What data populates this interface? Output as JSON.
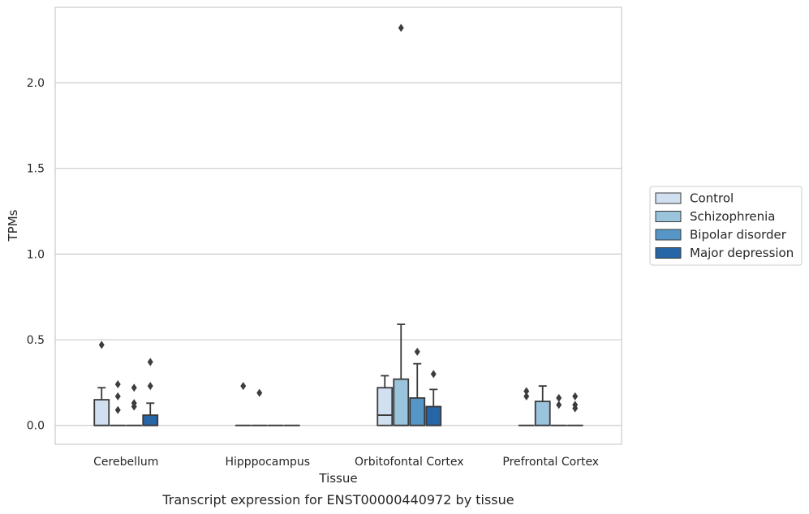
{
  "caption": "Transcript expression for ENST00000440972 by tissue",
  "chart_data": {
    "type": "box",
    "xlabel": "Tissue",
    "ylabel": "TPMs",
    "ylim": [
      -0.11,
      2.44
    ],
    "yticks": [
      0.0,
      0.5,
      1.0,
      1.5,
      2.0
    ],
    "ytick_labels": [
      "0.0",
      "0.5",
      "1.0",
      "1.5",
      "2.0"
    ],
    "grid": "horizontal",
    "legend_position": "right",
    "categories": [
      "Cerebellum",
      "Hipppocampus",
      "Orbitofontal Cortex",
      "Prefrontal Cortex"
    ],
    "series": [
      {
        "name": "Control",
        "color": "#d0e0f0",
        "boxes": [
          {
            "q1": 0.0,
            "median": 0.0,
            "q3": 0.15,
            "whisker_low": 0.0,
            "whisker_high": 0.22,
            "outliers": [
              0.47
            ]
          },
          {
            "q1": 0.0,
            "median": 0.0,
            "q3": 0.0,
            "whisker_low": 0.0,
            "whisker_high": 0.0,
            "outliers": [
              0.23
            ]
          },
          {
            "q1": 0.0,
            "median": 0.06,
            "q3": 0.22,
            "whisker_low": 0.0,
            "whisker_high": 0.29,
            "outliers": []
          },
          {
            "q1": 0.0,
            "median": 0.0,
            "q3": 0.0,
            "whisker_low": 0.0,
            "whisker_high": 0.0,
            "outliers": [
              0.17,
              0.2
            ]
          }
        ]
      },
      {
        "name": "Schizophrenia",
        "color": "#9ac3dc",
        "boxes": [
          {
            "q1": 0.0,
            "median": 0.0,
            "q3": 0.0,
            "whisker_low": 0.0,
            "whisker_high": 0.0,
            "outliers": [
              0.09,
              0.17,
              0.24
            ]
          },
          {
            "q1": 0.0,
            "median": 0.0,
            "q3": 0.0,
            "whisker_low": 0.0,
            "whisker_high": 0.0,
            "outliers": [
              0.19
            ]
          },
          {
            "q1": 0.0,
            "median": 0.0,
            "q3": 0.27,
            "whisker_low": 0.0,
            "whisker_high": 0.59,
            "outliers": [
              2.32
            ]
          },
          {
            "q1": 0.0,
            "median": 0.0,
            "q3": 0.14,
            "whisker_low": 0.0,
            "whisker_high": 0.23,
            "outliers": []
          }
        ]
      },
      {
        "name": "Bipolar disorder",
        "color": "#5596c6",
        "boxes": [
          {
            "q1": 0.0,
            "median": 0.0,
            "q3": 0.0,
            "whisker_low": 0.0,
            "whisker_high": 0.0,
            "outliers": [
              0.11,
              0.13,
              0.22
            ]
          },
          {
            "q1": 0.0,
            "median": 0.0,
            "q3": 0.0,
            "whisker_low": 0.0,
            "whisker_high": 0.0,
            "outliers": []
          },
          {
            "q1": 0.0,
            "median": 0.0,
            "q3": 0.16,
            "whisker_low": 0.0,
            "whisker_high": 0.36,
            "outliers": [
              0.43
            ]
          },
          {
            "q1": 0.0,
            "median": 0.0,
            "q3": 0.0,
            "whisker_low": 0.0,
            "whisker_high": 0.0,
            "outliers": [
              0.12,
              0.16
            ]
          }
        ]
      },
      {
        "name": "Major depression",
        "color": "#2665a6",
        "boxes": [
          {
            "q1": 0.0,
            "median": 0.0,
            "q3": 0.06,
            "whisker_low": 0.0,
            "whisker_high": 0.13,
            "outliers": [
              0.23,
              0.37
            ]
          },
          {
            "q1": 0.0,
            "median": 0.0,
            "q3": 0.0,
            "whisker_low": 0.0,
            "whisker_high": 0.0,
            "outliers": []
          },
          {
            "q1": 0.0,
            "median": 0.0,
            "q3": 0.11,
            "whisker_low": 0.0,
            "whisker_high": 0.21,
            "outliers": [
              0.3
            ]
          },
          {
            "q1": 0.0,
            "median": 0.0,
            "q3": 0.0,
            "whisker_low": 0.0,
            "whisker_high": 0.0,
            "outliers": [
              0.1,
              0.12,
              0.17
            ]
          }
        ]
      }
    ]
  }
}
